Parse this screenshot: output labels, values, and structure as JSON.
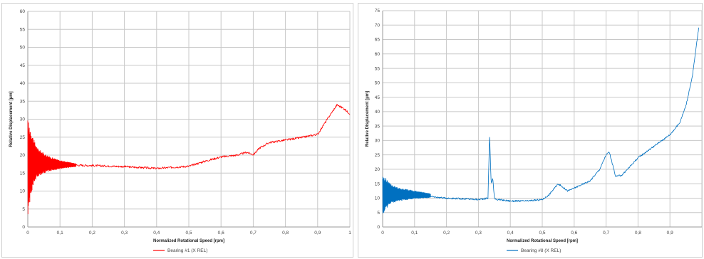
{
  "chart_data": [
    {
      "type": "line",
      "xlabel": "Normalized Rotational Speed [rpm]",
      "ylabel": "Relative Displacement [µm]",
      "xlim": [
        0,
        1
      ],
      "ylim": [
        0,
        60
      ],
      "x_ticks": [
        "0",
        "0,1",
        "0,2",
        "0,3",
        "0,4",
        "0,5",
        "0,6",
        "0,7",
        "0,8",
        "0,9",
        "1"
      ],
      "y_ticks": [
        "0",
        "5",
        "10",
        "15",
        "20",
        "25",
        "30",
        "35",
        "40",
        "45",
        "50",
        "55",
        "60"
      ],
      "grid": true,
      "legend_position": "bottom",
      "series": [
        {
          "name": "Bearing #1 (X REL)",
          "color": "#ff0000",
          "x": [
            0.0,
            0.02,
            0.05,
            0.08,
            0.1,
            0.13,
            0.15,
            0.2,
            0.3,
            0.4,
            0.45,
            0.5,
            0.55,
            0.6,
            0.65,
            0.68,
            0.7,
            0.72,
            0.75,
            0.8,
            0.85,
            0.9,
            0.93,
            0.96,
            0.98,
            1.0
          ],
          "values": [
            20.0,
            18.5,
            17.5,
            17.3,
            17.2,
            17.0,
            17.2,
            17.1,
            16.8,
            16.3,
            16.6,
            16.9,
            18.3,
            19.5,
            20.0,
            20.8,
            20.1,
            22.0,
            23.5,
            24.2,
            24.9,
            25.8,
            30.0,
            34.0,
            33.0,
            31.5
          ],
          "envelope": {
            "x": [
              0.0,
              0.01,
              0.02,
              0.03,
              0.05,
              0.07,
              0.1,
              0.13,
              0.15
            ],
            "upper": [
              30.0,
              27.0,
              24.0,
              22.0,
              20.5,
              19.5,
              18.5,
              18.0,
              17.6
            ],
            "lower": [
              3.0,
              9.0,
              12.0,
              14.0,
              15.0,
              15.6,
              16.2,
              16.6,
              16.8
            ]
          }
        }
      ]
    },
    {
      "type": "line",
      "xlabel": "Normalized Rotational Speed [rpm]",
      "ylabel": "Relative Displacement [µm]",
      "xlim": [
        0,
        1
      ],
      "ylim": [
        0,
        75
      ],
      "x_ticks": [
        "0",
        "0,1",
        "0,2",
        "0,3",
        "0,4",
        "0,5",
        "0,6",
        "0,7",
        "0,8",
        "0,9",
        ""
      ],
      "y_ticks": [
        "0",
        "5",
        "10",
        "15",
        "20",
        "25",
        "30",
        "35",
        "40",
        "45",
        "50",
        "55",
        "60",
        "65",
        "70",
        "75"
      ],
      "grid": true,
      "legend_position": "bottom",
      "series": [
        {
          "name": "Bearing #8 (X REL)",
          "color": "#0070c0",
          "x": [
            0.0,
            0.05,
            0.1,
            0.15,
            0.2,
            0.25,
            0.3,
            0.33,
            0.335,
            0.34,
            0.345,
            0.35,
            0.36,
            0.4,
            0.45,
            0.5,
            0.52,
            0.55,
            0.58,
            0.6,
            0.65,
            0.68,
            0.7,
            0.71,
            0.73,
            0.75,
            0.8,
            0.85,
            0.9,
            0.93,
            0.95,
            0.97,
            0.99
          ],
          "values": [
            12.0,
            11.5,
            11.0,
            10.5,
            10.0,
            9.8,
            9.5,
            10.0,
            32.0,
            15.0,
            17.0,
            10.0,
            9.5,
            9.0,
            9.0,
            9.5,
            11.0,
            15.0,
            12.5,
            13.5,
            16.0,
            20.0,
            25.0,
            26.0,
            17.5,
            18.0,
            24.0,
            28.0,
            32.0,
            36.0,
            42.0,
            52.0,
            69.0
          ],
          "envelope": {
            "x": [
              0.0,
              0.01,
              0.02,
              0.03,
              0.05,
              0.08,
              0.1,
              0.13,
              0.15
            ],
            "upper": [
              17.5,
              17.0,
              15.5,
              14.5,
              13.5,
              13.0,
              12.5,
              12.0,
              11.5
            ],
            "lower": [
              3.5,
              6.0,
              7.5,
              8.3,
              9.0,
              9.5,
              9.8,
              10.0,
              10.2
            ]
          }
        }
      ]
    }
  ]
}
